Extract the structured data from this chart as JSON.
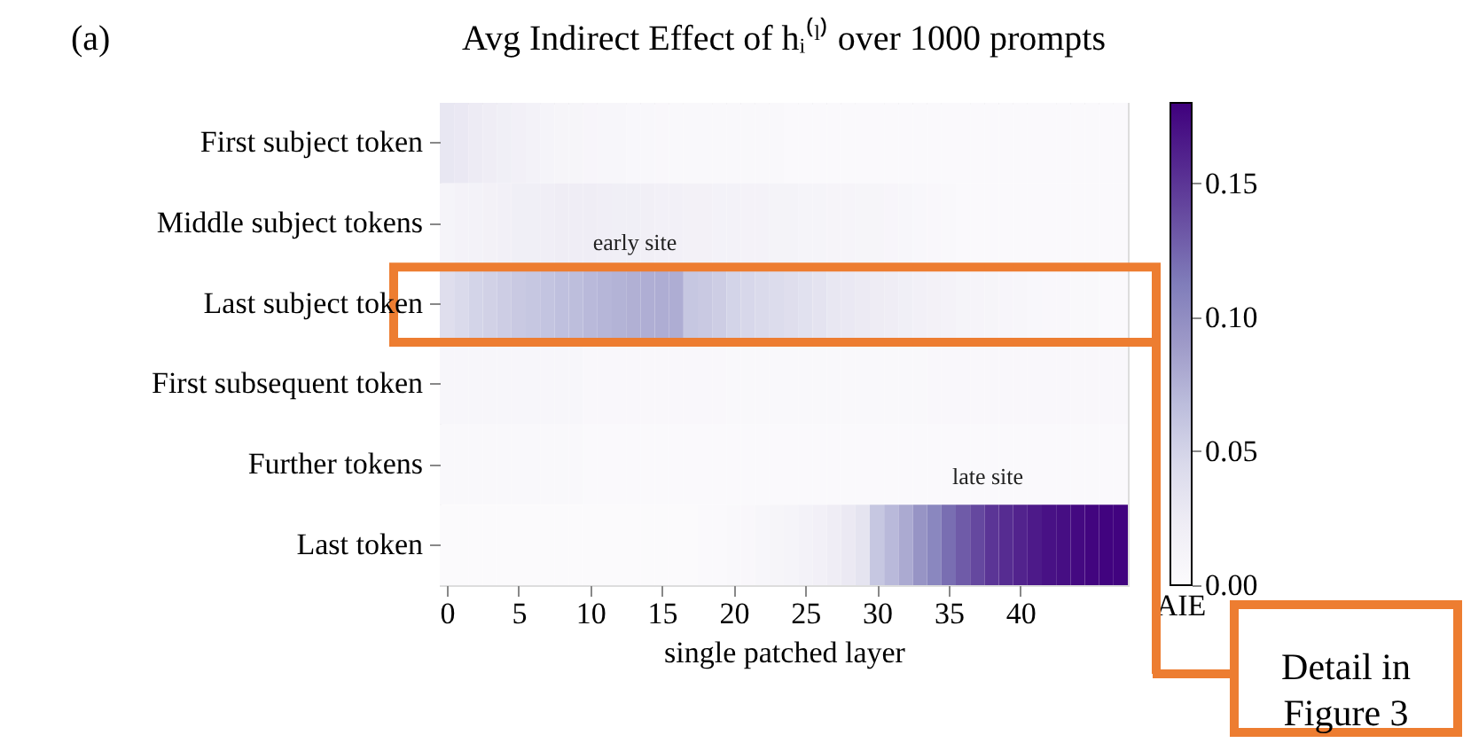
{
  "chart_data": {
    "type": "heatmap",
    "title": "Avg Indirect Effect of hᵢ⁽ˡ⁾ over 1000 prompts",
    "xlabel": "single patched layer",
    "clabel": "AIE",
    "x": [
      0,
      1,
      2,
      3,
      4,
      5,
      6,
      7,
      8,
      9,
      10,
      11,
      12,
      13,
      14,
      15,
      16,
      17,
      18,
      19,
      20,
      21,
      22,
      23,
      24,
      25,
      26,
      27,
      28,
      29,
      30,
      31,
      32,
      33,
      34,
      35,
      36,
      37,
      38,
      39,
      40,
      41,
      42,
      43,
      44,
      45,
      46,
      47
    ],
    "y_categories": [
      "First subject token",
      "Middle subject tokens",
      "Last subject token",
      "First subsequent token",
      "Further tokens",
      "Last token"
    ],
    "cells": [
      [
        0.03,
        0.028,
        0.025,
        0.022,
        0.02,
        0.018,
        0.015,
        0.012,
        0.01,
        0.01,
        0.009,
        0.008,
        0.008,
        0.007,
        0.007,
        0.006,
        0.005,
        0.005,
        0.005,
        0.005,
        0.005,
        0.005,
        0.005,
        0.005,
        0.004,
        0.004,
        0.004,
        0.004,
        0.004,
        0.004,
        0.004,
        0.004,
        0.004,
        0.004,
        0.004,
        0.004,
        0.003,
        0.003,
        0.003,
        0.003,
        0.003,
        0.003,
        0.003,
        0.003,
        0.003,
        0.003,
        0.003,
        0.003
      ],
      [
        0.012,
        0.014,
        0.015,
        0.016,
        0.018,
        0.02,
        0.02,
        0.021,
        0.022,
        0.022,
        0.022,
        0.021,
        0.02,
        0.02,
        0.019,
        0.018,
        0.017,
        0.016,
        0.016,
        0.015,
        0.015,
        0.014,
        0.014,
        0.013,
        0.013,
        0.012,
        0.012,
        0.011,
        0.011,
        0.01,
        0.01,
        0.009,
        0.008,
        0.007,
        0.006,
        0.005,
        0.004,
        0.004,
        0.004,
        0.004,
        0.004,
        0.004,
        0.004,
        0.004,
        0.004,
        0.004,
        0.004,
        0.004
      ],
      [
        0.04,
        0.045,
        0.05,
        0.052,
        0.055,
        0.058,
        0.06,
        0.062,
        0.065,
        0.067,
        0.07,
        0.072,
        0.074,
        0.076,
        0.077,
        0.078,
        0.078,
        0.06,
        0.058,
        0.055,
        0.05,
        0.047,
        0.045,
        0.043,
        0.04,
        0.037,
        0.034,
        0.03,
        0.028,
        0.026,
        0.024,
        0.022,
        0.02,
        0.018,
        0.016,
        0.014,
        0.012,
        0.011,
        0.01,
        0.009,
        0.008,
        0.007,
        0.006,
        0.006,
        0.005,
        0.005,
        0.004,
        0.004
      ],
      [
        0.008,
        0.008,
        0.008,
        0.008,
        0.008,
        0.008,
        0.008,
        0.008,
        0.008,
        0.008,
        0.006,
        0.006,
        0.006,
        0.006,
        0.006,
        0.006,
        0.006,
        0.006,
        0.006,
        0.006,
        0.005,
        0.005,
        0.005,
        0.005,
        0.005,
        0.005,
        0.005,
        0.005,
        0.005,
        0.005,
        0.005,
        0.005,
        0.005,
        0.005,
        0.006,
        0.006,
        0.006,
        0.006,
        0.006,
        0.006,
        0.006,
        0.006,
        0.006,
        0.006,
        0.006,
        0.006,
        0.006,
        0.006
      ],
      [
        0.005,
        0.005,
        0.005,
        0.005,
        0.005,
        0.005,
        0.005,
        0.005,
        0.005,
        0.005,
        0.003,
        0.003,
        0.003,
        0.003,
        0.003,
        0.003,
        0.003,
        0.003,
        0.003,
        0.003,
        0.003,
        0.003,
        0.003,
        0.003,
        0.003,
        0.003,
        0.003,
        0.003,
        0.003,
        0.003,
        0.003,
        0.003,
        0.003,
        0.003,
        0.003,
        0.003,
        0.003,
        0.003,
        0.003,
        0.003,
        0.003,
        0.003,
        0.003,
        0.003,
        0.003,
        0.003,
        0.003,
        0.003
      ],
      [
        0.002,
        0.002,
        0.002,
        0.002,
        0.002,
        0.002,
        0.002,
        0.002,
        0.002,
        0.002,
        0.002,
        0.002,
        0.002,
        0.002,
        0.002,
        0.002,
        0.002,
        0.002,
        0.003,
        0.004,
        0.005,
        0.006,
        0.008,
        0.01,
        0.012,
        0.015,
        0.018,
        0.022,
        0.027,
        0.033,
        0.06,
        0.07,
        0.08,
        0.095,
        0.105,
        0.12,
        0.13,
        0.14,
        0.15,
        0.155,
        0.16,
        0.165,
        0.17,
        0.172,
        0.175,
        0.177,
        0.178,
        0.178
      ]
    ],
    "xlim": [
      -0.5,
      47.5
    ],
    "xticks": [
      0,
      5,
      10,
      15,
      20,
      25,
      30,
      35,
      40
    ],
    "clim": [
      0,
      0.18
    ],
    "cticks": [
      {
        "value": 0,
        "label": "0.00"
      },
      0.05,
      {
        "value": 0.1,
        "label": "0.10"
      },
      0.15
    ],
    "annotations": [
      "(a)",
      "Detail in\nFigure 3",
      "early site",
      "late site"
    ]
  }
}
